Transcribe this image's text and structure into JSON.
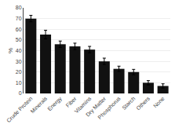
{
  "chart_data": {
    "type": "bar",
    "categories": [
      "Crude Protein",
      "Minerals",
      "Energy",
      "Fiber",
      "Vitamins",
      "Dry Matter",
      "Phosphorus",
      "Starch",
      "Others",
      "None"
    ],
    "values": [
      70,
      55,
      46,
      44,
      41,
      30,
      23,
      20,
      10,
      7
    ],
    "errors": [
      3,
      4,
      3,
      3,
      3,
      3,
      2.5,
      2.5,
      2,
      2
    ],
    "color": "#111111",
    "ylabel": "%",
    "ylim": [
      0,
      80
    ],
    "yticks": [
      0,
      10,
      20,
      30,
      40,
      50,
      60,
      70,
      80
    ],
    "grid": true
  }
}
